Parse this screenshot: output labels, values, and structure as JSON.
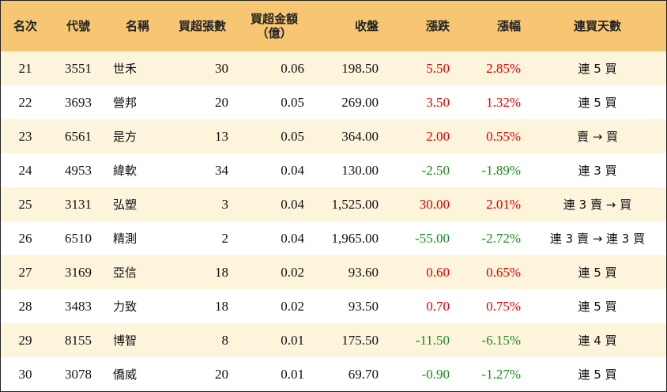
{
  "headers": {
    "rank": "名次",
    "code": "代號",
    "name": "名稱",
    "net_lots": "買超張數",
    "net_amount_line1": "買超金額",
    "net_amount_line2": "（億）",
    "close": "收盤",
    "change": "漲跌",
    "pct": "漲幅",
    "streak": "連買天數"
  },
  "rows": [
    {
      "rank": "21",
      "code": "3551",
      "name": "世禾",
      "net_lots": "30",
      "net_amount": "0.06",
      "close": "198.50",
      "change": "5.50",
      "pct": "2.85%",
      "streak": "連 5 買",
      "dir": "up"
    },
    {
      "rank": "22",
      "code": "3693",
      "name": "營邦",
      "net_lots": "20",
      "net_amount": "0.05",
      "close": "269.00",
      "change": "3.50",
      "pct": "1.32%",
      "streak": "連 5 買",
      "dir": "up"
    },
    {
      "rank": "23",
      "code": "6561",
      "name": "是方",
      "net_lots": "13",
      "net_amount": "0.05",
      "close": "364.00",
      "change": "2.00",
      "pct": "0.55%",
      "streak": "賣 → 買",
      "dir": "up"
    },
    {
      "rank": "24",
      "code": "4953",
      "name": "緯軟",
      "net_lots": "34",
      "net_amount": "0.04",
      "close": "130.00",
      "change": "-2.50",
      "pct": "-1.89%",
      "streak": "連 3 買",
      "dir": "down"
    },
    {
      "rank": "25",
      "code": "3131",
      "name": "弘塑",
      "net_lots": "3",
      "net_amount": "0.04",
      "close": "1,525.00",
      "change": "30.00",
      "pct": "2.01%",
      "streak": "連 3 賣 → 買",
      "dir": "up"
    },
    {
      "rank": "26",
      "code": "6510",
      "name": "精測",
      "net_lots": "2",
      "net_amount": "0.04",
      "close": "1,965.00",
      "change": "-55.00",
      "pct": "-2.72%",
      "streak": "連 3 賣 → 連 3 買",
      "dir": "down"
    },
    {
      "rank": "27",
      "code": "3169",
      "name": "亞信",
      "net_lots": "18",
      "net_amount": "0.02",
      "close": "93.60",
      "change": "0.60",
      "pct": "0.65%",
      "streak": "連 5 買",
      "dir": "up"
    },
    {
      "rank": "28",
      "code": "3483",
      "name": "力致",
      "net_lots": "18",
      "net_amount": "0.02",
      "close": "93.50",
      "change": "0.70",
      "pct": "0.75%",
      "streak": "連 5 買",
      "dir": "up"
    },
    {
      "rank": "29",
      "code": "8155",
      "name": "博智",
      "net_lots": "8",
      "net_amount": "0.01",
      "close": "175.50",
      "change": "-11.50",
      "pct": "-6.15%",
      "streak": "連 4 買",
      "dir": "down"
    },
    {
      "rank": "30",
      "code": "3078",
      "name": "僑威",
      "net_lots": "20",
      "net_amount": "0.01",
      "close": "69.70",
      "change": "-0.90",
      "pct": "-1.27%",
      "streak": "連 5 買",
      "dir": "down"
    }
  ],
  "colors": {
    "header_bg": "#f7c672",
    "stripe_bg": "#fdf4dc",
    "up": "#e00000",
    "down": "#1f8a1f"
  }
}
